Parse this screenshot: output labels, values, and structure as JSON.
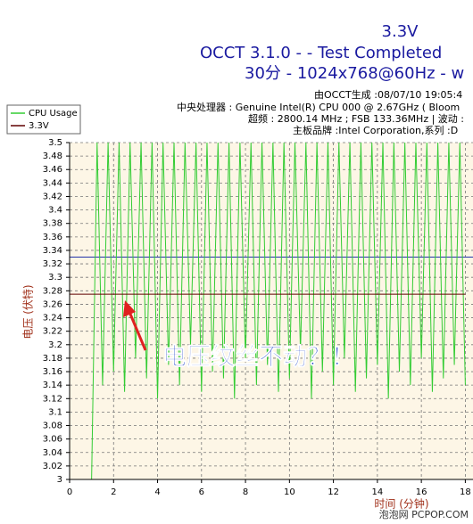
{
  "chart_data": {
    "type": "line",
    "title": "3.3V",
    "subtitle": "OCCT 3.1.0 -  - Test Completed",
    "subtitle2": "30分 - 1024x768@60Hz - w",
    "info": [
      "由OCCT生成 :08/07/10 19:05:4",
      "中央处理器 : Genuine Intel(R) CPU 000 @ 2.67GHz ( Bloom",
      "超频 : 2800.14 MHz ; FSB 133.36MHz | 波动 :",
      "主板品牌 :Intel Corporation,系列 :D"
    ],
    "xlabel": "时间 (分钟)",
    "ylabel": "电压 (伏特)",
    "annotation": "电压纹丝不动？！",
    "watermark": "泡泡网 PCPOP.COM",
    "xlim": [
      0,
      18
    ],
    "xticks": [
      0,
      2,
      4,
      6,
      8,
      10,
      12,
      14,
      16,
      18
    ],
    "ylim": [
      3,
      3.5
    ],
    "yticks": [
      3,
      3.02,
      3.04,
      3.06,
      3.08,
      3.1,
      3.12,
      3.14,
      3.16,
      3.18,
      3.2,
      3.22,
      3.24,
      3.26,
      3.28,
      3.3,
      3.32,
      3.34,
      3.36,
      3.38,
      3.4,
      3.42,
      3.44,
      3.46,
      3.48,
      3.5
    ],
    "grid": true,
    "hlines": [
      {
        "value": 3.33,
        "color": "#2233aa"
      }
    ],
    "series": [
      {
        "name": "CPU Usage",
        "color": "#33cc33",
        "x": [
          1,
          1.25,
          1.5,
          1.75,
          2,
          2.25,
          2.5,
          2.75,
          3,
          3.25,
          3.5,
          3.75,
          4,
          4.25,
          4.5,
          4.75,
          5,
          5.25,
          5.5,
          5.75,
          6,
          6.25,
          6.5,
          6.75,
          7,
          7.25,
          7.5,
          7.75,
          8,
          8.25,
          8.5,
          8.75,
          9,
          9.25,
          9.5,
          9.75,
          10,
          10.25,
          10.5,
          10.75,
          11,
          11.25,
          11.5,
          11.75,
          12,
          12.25,
          12.5,
          12.75,
          13,
          13.25,
          13.5,
          13.75,
          14,
          14.25,
          14.5,
          14.75,
          15,
          15.25,
          15.5,
          15.75,
          16,
          16.25,
          16.5,
          16.75,
          17,
          17.25,
          17.5,
          17.75,
          18
        ],
        "values": [
          3.0,
          3.5,
          3.14,
          3.5,
          3.16,
          3.5,
          3.13,
          3.5,
          3.18,
          3.5,
          3.15,
          3.5,
          3.12,
          3.5,
          3.17,
          3.5,
          3.14,
          3.5,
          3.2,
          3.5,
          3.13,
          3.5,
          3.16,
          3.5,
          3.15,
          3.5,
          3.12,
          3.5,
          3.18,
          3.5,
          3.14,
          3.5,
          3.17,
          3.5,
          3.13,
          3.5,
          3.15,
          3.5,
          3.19,
          3.5,
          3.12,
          3.5,
          3.16,
          3.5,
          3.14,
          3.5,
          3.18,
          3.5,
          3.13,
          3.5,
          3.15,
          3.5,
          3.17,
          3.5,
          3.12,
          3.5,
          3.16,
          3.5,
          3.14,
          3.5,
          3.18,
          3.5,
          3.13,
          3.5,
          3.15,
          3.5,
          3.17,
          3.5,
          3.14
        ]
      },
      {
        "name": "3.3V",
        "color": "#600000",
        "x": [
          0,
          18
        ],
        "values": [
          3.275,
          3.275
        ]
      }
    ]
  }
}
